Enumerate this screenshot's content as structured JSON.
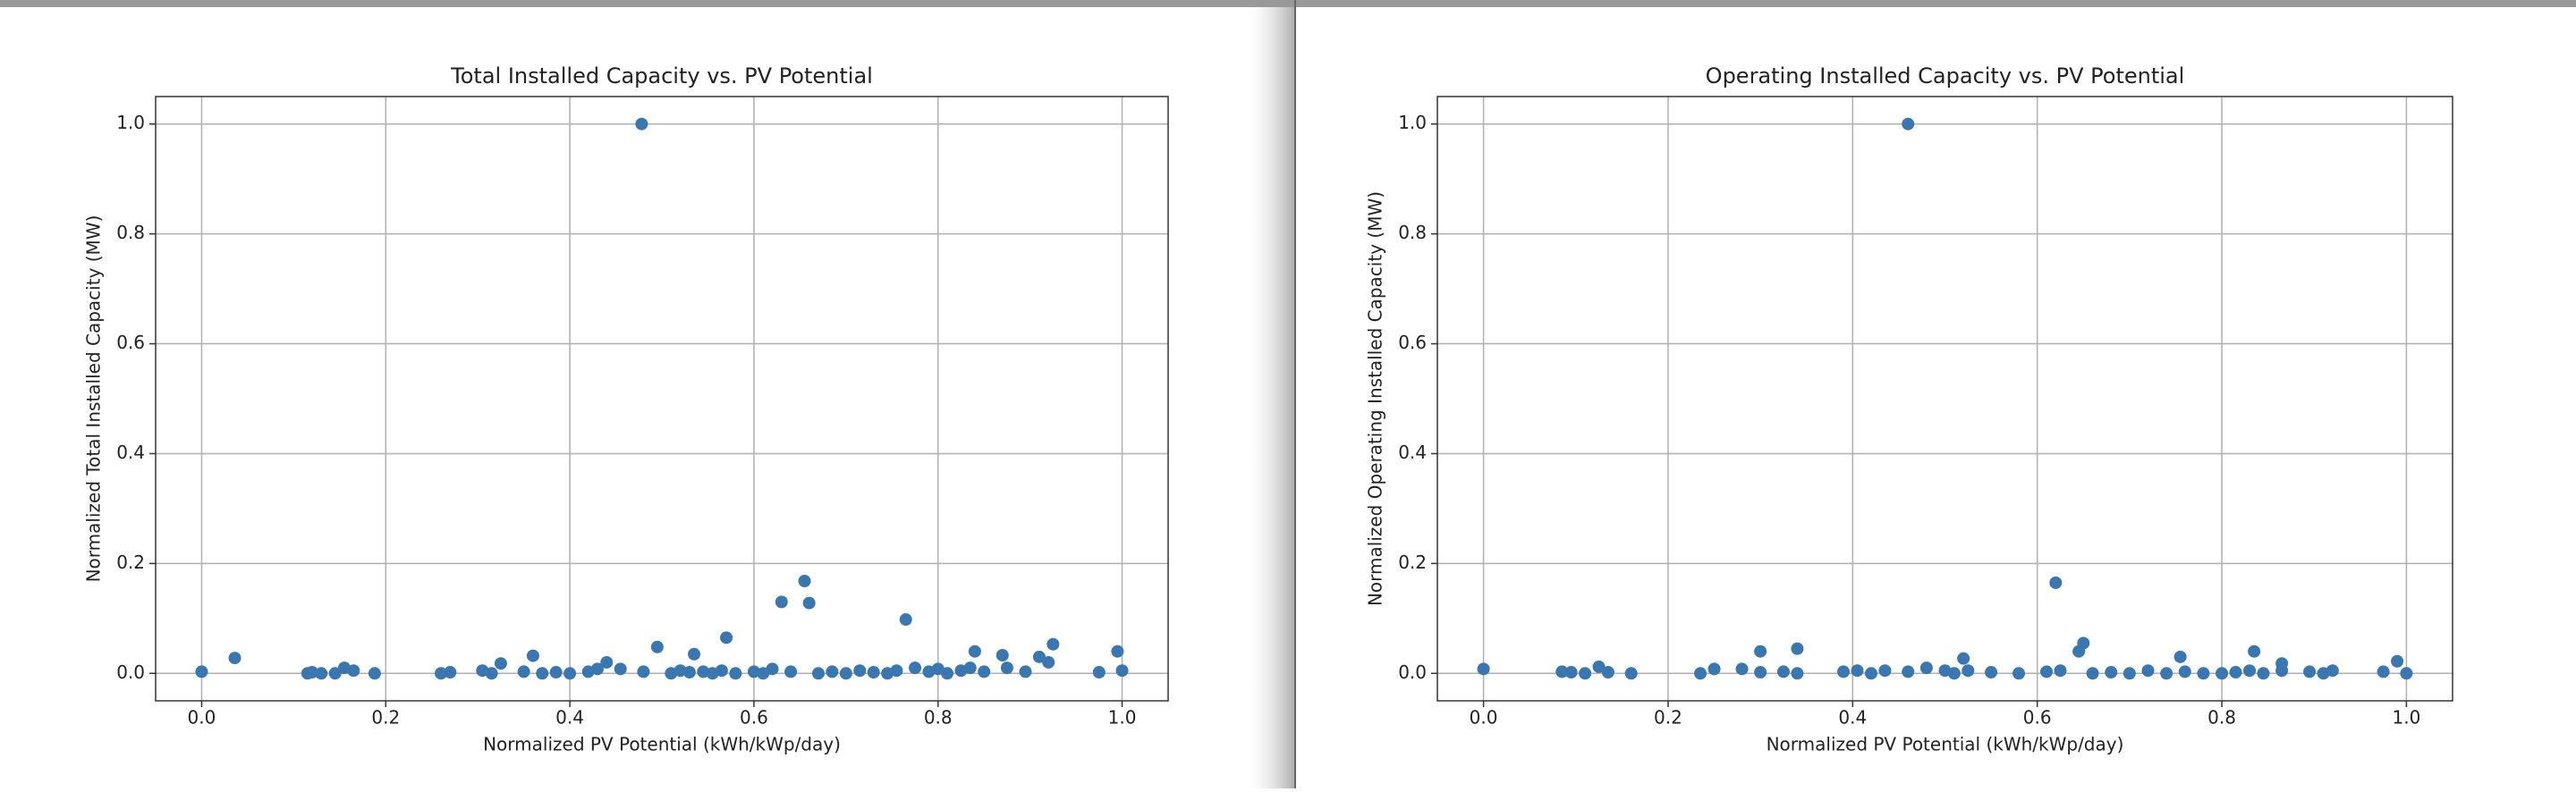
{
  "chart_data": [
    {
      "type": "scatter",
      "title": "Total Installed Capacity vs. PV Potential",
      "x_label": "Normalized PV Potential (kWh/kWp/day)",
      "y_label": "Normalized Total Installed Capacity (MW)",
      "color": "#3a76af",
      "grid": true,
      "xlim": [
        -0.05,
        1.05
      ],
      "ylim": [
        -0.05,
        1.05
      ],
      "xticks": [
        {
          "value": 0,
          "label": "0.0"
        },
        0.2,
        0.4,
        0.6,
        0.8,
        {
          "value": 1,
          "label": "1.0"
        }
      ],
      "yticks": [
        {
          "value": 0,
          "label": "0.0"
        },
        0.2,
        0.4,
        0.6,
        0.8,
        {
          "value": 1,
          "label": "1.0"
        }
      ],
      "x": [
        0.0,
        0.036,
        0.115,
        0.12,
        0.13,
        0.145,
        0.155,
        0.165,
        0.188,
        0.26,
        0.27,
        0.305,
        0.315,
        0.325,
        0.35,
        0.36,
        0.37,
        0.385,
        0.4,
        0.42,
        0.43,
        0.44,
        0.455,
        0.478,
        0.48,
        0.495,
        0.51,
        0.52,
        0.53,
        0.535,
        0.545,
        0.555,
        0.565,
        0.57,
        0.58,
        0.6,
        0.61,
        0.62,
        0.63,
        0.64,
        0.655,
        0.66,
        0.67,
        0.685,
        0.7,
        0.715,
        0.73,
        0.745,
        0.755,
        0.765,
        0.775,
        0.79,
        0.8,
        0.81,
        0.825,
        0.835,
        0.84,
        0.85,
        0.87,
        0.875,
        0.895,
        0.91,
        0.92,
        0.925,
        0.975,
        0.995,
        1.0
      ],
      "values": [
        0.003,
        0.028,
        0.0,
        0.002,
        0.0,
        0.0,
        0.01,
        0.005,
        0.0,
        0.0,
        0.002,
        0.005,
        0.0,
        0.018,
        0.003,
        0.032,
        0.0,
        0.002,
        0.0,
        0.003,
        0.008,
        0.02,
        0.008,
        1.0,
        0.003,
        0.048,
        0.0,
        0.005,
        0.002,
        0.035,
        0.003,
        0.0,
        0.005,
        0.065,
        0.0,
        0.003,
        0.0,
        0.008,
        0.13,
        0.003,
        0.168,
        0.128,
        0.0,
        0.003,
        0.0,
        0.005,
        0.002,
        0.0,
        0.005,
        0.098,
        0.01,
        0.003,
        0.008,
        0.0,
        0.005,
        0.01,
        0.04,
        0.003,
        0.033,
        0.01,
        0.003,
        0.03,
        0.02,
        0.053,
        0.002,
        0.04,
        0.005
      ]
    },
    {
      "type": "scatter",
      "title": "Operating Installed Capacity vs. PV Potential",
      "x_label": "Normalized PV Potential (kWh/kWp/day)",
      "y_label": "Normalized Operating Installed Capacity (MW)",
      "color": "#3a76af",
      "grid": true,
      "xlim": [
        -0.05,
        1.05
      ],
      "ylim": [
        -0.05,
        1.05
      ],
      "xticks": [
        {
          "value": 0,
          "label": "0.0"
        },
        0.2,
        0.4,
        0.6,
        0.8,
        {
          "value": 1,
          "label": "1.0"
        }
      ],
      "yticks": [
        {
          "value": 0,
          "label": "0.0"
        },
        0.2,
        0.4,
        0.6,
        0.8,
        {
          "value": 1,
          "label": "1.0"
        }
      ],
      "x": [
        0.0,
        0.085,
        0.095,
        0.11,
        0.125,
        0.135,
        0.16,
        0.235,
        0.25,
        0.28,
        0.3,
        0.3,
        0.325,
        0.34,
        0.34,
        0.39,
        0.405,
        0.42,
        0.435,
        0.46,
        0.46,
        0.48,
        0.5,
        0.51,
        0.52,
        0.525,
        0.55,
        0.58,
        0.61,
        0.62,
        0.625,
        0.645,
        0.65,
        0.66,
        0.68,
        0.7,
        0.72,
        0.74,
        0.755,
        0.76,
        0.78,
        0.8,
        0.815,
        0.83,
        0.835,
        0.845,
        0.865,
        0.865,
        0.895,
        0.91,
        0.92,
        0.975,
        0.99,
        1.0
      ],
      "values": [
        0.008,
        0.003,
        0.002,
        0.0,
        0.012,
        0.002,
        0.0,
        0.0,
        0.008,
        0.008,
        0.002,
        0.04,
        0.003,
        0.0,
        0.045,
        0.003,
        0.005,
        0.0,
        0.005,
        1.0,
        0.003,
        0.01,
        0.005,
        0.0,
        0.027,
        0.005,
        0.002,
        0.0,
        0.003,
        0.165,
        0.005,
        0.04,
        0.055,
        0.0,
        0.002,
        0.0,
        0.005,
        0.0,
        0.03,
        0.003,
        0.0,
        0.0,
        0.002,
        0.005,
        0.04,
        0.0,
        0.018,
        0.005,
        0.003,
        0.0,
        0.005,
        0.003,
        0.022,
        0.0
      ]
    }
  ]
}
